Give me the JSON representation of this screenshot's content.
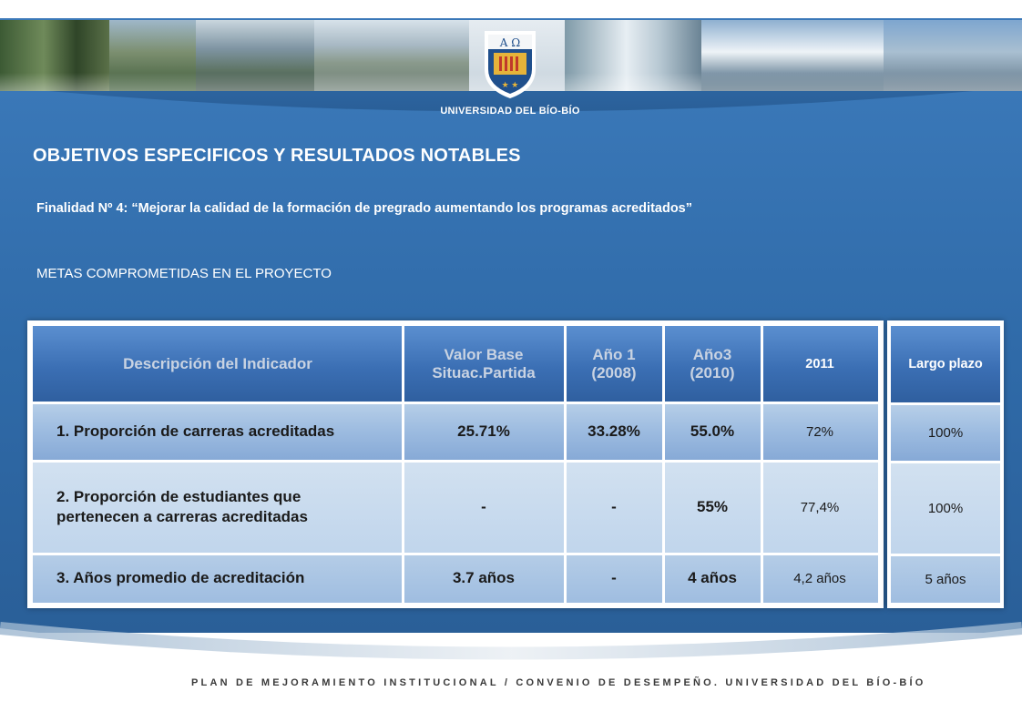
{
  "header": {
    "university_name": "UNIVERSIDAD DEL BÍO-BÍO",
    "logo_letters": "A Ω"
  },
  "content": {
    "title": "OBJETIVOS ESPECIFICOS Y RESULTADOS NOTABLES",
    "subtitle": "Finalidad Nº 4: “Mejorar la calidad de la formación de pregrado aumentando los programas acreditados”",
    "section_label": "METAS COMPROMETIDAS EN EL PROYECTO"
  },
  "table": {
    "columns": [
      "Descripción del Indicador",
      "Valor Base Situac.Partida",
      "Año 1 (2008)",
      "Año3 (2010)",
      "2011",
      "Largo plazo"
    ],
    "rows": [
      {
        "description": "1. Proporción de carreras acreditadas",
        "base": "25.71%",
        "year1": "33.28%",
        "year3": "55.0%",
        "y2011": "72%",
        "long_term": "100%"
      },
      {
        "description": "2. Proporción de estudiantes que pertenecen a carreras acreditadas",
        "base": "-",
        "year1": "-",
        "year3": "55%",
        "y2011": "77,4%",
        "long_term": "100%"
      },
      {
        "description": "3. Años promedio de acreditación",
        "base": "3.7 años",
        "year1": "-",
        "year3": "4 años",
        "y2011": "4,2 años",
        "long_term": "5 años"
      }
    ]
  },
  "footer": {
    "text": "PLAN DE MEJORAMIENTO INSTITUCIONAL / CONVENIO DE DESEMPEÑO. UNIVERSIDAD DEL BÍO-BÍO"
  },
  "colors": {
    "slide_blue": "#2f6aa8",
    "header_blue": "#3b6fb4",
    "row_light_blue": "#b7cfe8"
  }
}
